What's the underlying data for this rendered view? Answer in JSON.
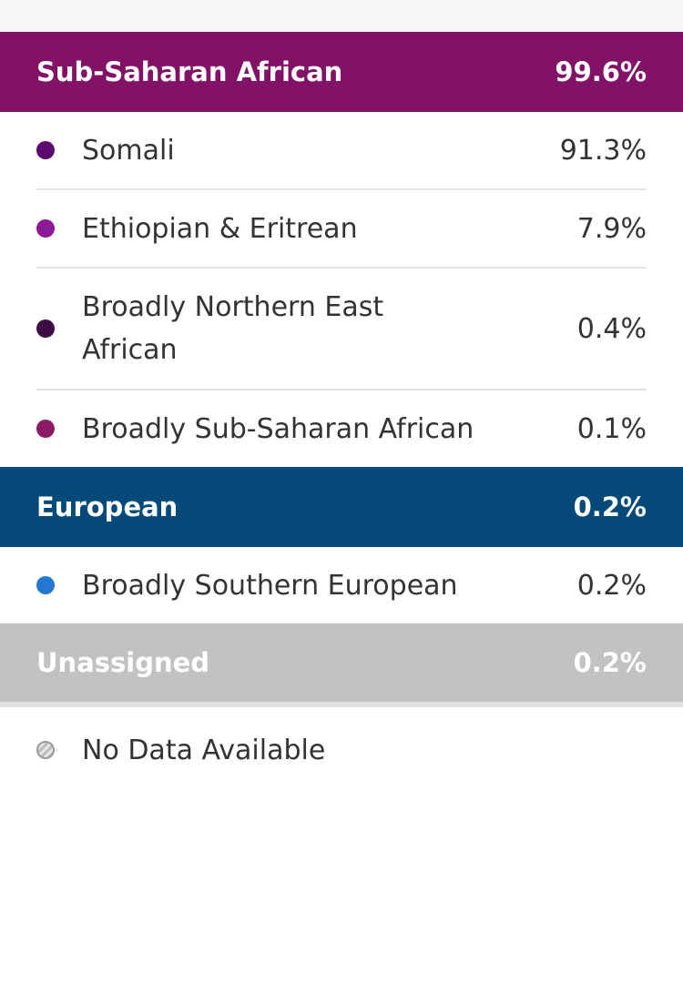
{
  "colors": {
    "sub_saharan_header": "#821265",
    "european_header": "#03497a",
    "unassigned_header": "#c1c2c4",
    "somali": "#5a0a6e",
    "ethiopian": "#8a1a96",
    "northern_east": "#3d0b45",
    "broadly_sub_saharan": "#8b1a66",
    "southern_european": "#2478d0"
  },
  "groups": [
    {
      "name": "Sub-Saharan African",
      "percent": "99.6%",
      "items": [
        {
          "label": "Somali",
          "percent": "91.3%"
        },
        {
          "label": "Ethiopian & Eritrean",
          "percent": "7.9%"
        },
        {
          "label": "Broadly Northern East African",
          "percent": "0.4%"
        },
        {
          "label": "Broadly Sub-Saharan African",
          "percent": "0.1%"
        }
      ]
    },
    {
      "name": "European",
      "percent": "0.2%",
      "items": [
        {
          "label": "Broadly Southern European",
          "percent": "0.2%"
        }
      ]
    },
    {
      "name": "Unassigned",
      "percent": "0.2%",
      "items": []
    }
  ],
  "legend": {
    "no_data_label": "No Data Available",
    "icon": "no-data-hatched-circle"
  }
}
